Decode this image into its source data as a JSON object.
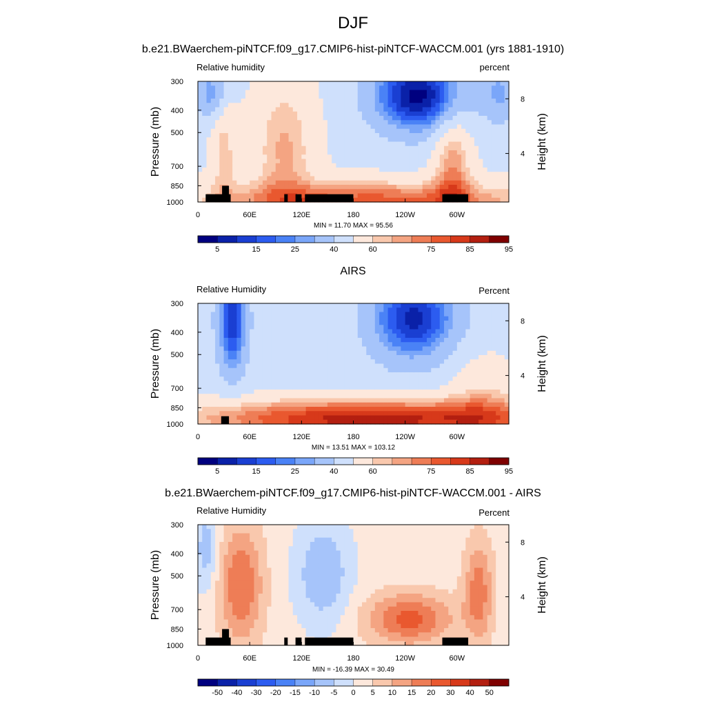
{
  "title": "DJF",
  "colors": {
    "abs_scale": [
      "#00007f",
      "#0a21a8",
      "#1a3fd2",
      "#2c5cf0",
      "#4a82f6",
      "#7aa6f9",
      "#a6c4fa",
      "#cfe0fc",
      "#fde8dc",
      "#f9c8ad",
      "#f4a482",
      "#ee7d56",
      "#e9582f",
      "#d7391a",
      "#b31f10",
      "#7f0000"
    ],
    "diff_scale": [
      "#00007f",
      "#0a21a8",
      "#1a3fd2",
      "#2c5cf0",
      "#4a82f6",
      "#7aa6f9",
      "#a6c4fa",
      "#cfe0fc",
      "#fde8dc",
      "#f9c8ad",
      "#f4a482",
      "#ee7d56",
      "#e9582f",
      "#d7391a",
      "#b31f10",
      "#7f0000"
    ],
    "terrain": "#000000"
  },
  "panels": [
    {
      "title": "b.e21.BWaerchem-piNTCF.f09_g17.CMIP6-hist-piNTCF-WACCM.001 (yrs 1881-1910)",
      "left_label": "Relative humidity",
      "right_label": "percent",
      "minmax": "MIN =  11.70  MAX =  95.56",
      "ylabel": "Pressure (mb)",
      "ylabel_right": "Height (km)",
      "y_ticks": [
        "300",
        "400",
        "500",
        "700",
        "850",
        "1000"
      ],
      "height_ticks": [
        "8",
        "4"
      ],
      "x_ticks": [
        "0",
        "60E",
        "120E",
        "180",
        "120W",
        "60W"
      ],
      "colorbar_labels": [
        "5",
        "15",
        "25",
        "40",
        "60",
        "75",
        "85",
        "95"
      ]
    },
    {
      "title": "AIRS",
      "left_label": "Relative Humidity",
      "right_label": "Percent",
      "minmax": "MIN =  13.51  MAX = 103.12",
      "ylabel": "Pressure (mb)",
      "ylabel_right": "Height (km)",
      "y_ticks": [
        "300",
        "400",
        "500",
        "700",
        "850",
        "1000"
      ],
      "height_ticks": [
        "8",
        "4"
      ],
      "x_ticks": [
        "0",
        "60E",
        "120E",
        "180",
        "120W",
        "60W"
      ],
      "colorbar_labels": [
        "5",
        "15",
        "25",
        "40",
        "60",
        "75",
        "85",
        "95"
      ]
    },
    {
      "title": "b.e21.BWaerchem-piNTCF.f09_g17.CMIP6-hist-piNTCF-WACCM.001 - AIRS",
      "left_label": "Relative Humidity",
      "right_label": "Percent",
      "minmax": "MIN = -16.39  MAX =  30.49",
      "ylabel": "Pressure (mb)",
      "ylabel_right": "Height (km)",
      "y_ticks": [
        "300",
        "400",
        "500",
        "700",
        "850",
        "1000"
      ],
      "height_ticks": [
        "8",
        "4"
      ],
      "x_ticks": [
        "0",
        "60E",
        "120E",
        "180",
        "120W",
        "60W"
      ],
      "colorbar_labels": [
        "-50",
        "-40",
        "-30",
        "-20",
        "-15",
        "-10",
        "-5",
        "0",
        "5",
        "10",
        "15",
        "20",
        "30",
        "40",
        "50"
      ]
    }
  ],
  "chart_data": [
    {
      "type": "heatmap",
      "title": "b.e21.BWaerchem-piNTCF.f09_g17.CMIP6-hist-piNTCF-WACCM.001 (yrs 1881-1910)",
      "ylabel": "Pressure (mb)",
      "ylabel_right": "Height (km)",
      "xlim": [
        0,
        360
      ],
      "ylim": [
        1000,
        300
      ],
      "x_ticks": [
        0,
        60,
        120,
        180,
        240,
        300
      ],
      "y_ticks": [
        300,
        400,
        500,
        700,
        850,
        1000
      ],
      "levels": [
        5,
        10,
        15,
        20,
        25,
        30,
        40,
        50,
        60,
        65,
        70,
        75,
        80,
        85,
        90,
        95
      ],
      "min": 11.7,
      "max": 95.56,
      "terrain": [
        [
          9,
          38,
          925
        ],
        [
          28,
          36,
          850
        ],
        [
          100,
          104,
          925
        ],
        [
          113,
          120,
          925
        ],
        [
          124,
          180,
          925
        ],
        [
          283,
          313,
          925
        ]
      ]
    },
    {
      "type": "heatmap",
      "title": "AIRS",
      "ylabel": "Pressure (mb)",
      "ylabel_right": "Height (km)",
      "xlim": [
        0,
        360
      ],
      "ylim": [
        1000,
        300
      ],
      "x_ticks": [
        0,
        60,
        120,
        180,
        240,
        300
      ],
      "y_ticks": [
        300,
        400,
        500,
        700,
        850,
        1000
      ],
      "levels": [
        5,
        10,
        15,
        20,
        25,
        30,
        40,
        50,
        60,
        65,
        70,
        75,
        80,
        85,
        90,
        95
      ],
      "min": 13.51,
      "max": 103.12,
      "terrain": [
        [
          27,
          36,
          925
        ]
      ]
    },
    {
      "type": "heatmap",
      "title": "b.e21.BWaerchem-piNTCF.f09_g17.CMIP6-hist-piNTCF-WACCM.001 - AIRS",
      "ylabel": "Pressure (mb)",
      "ylabel_right": "Height (km)",
      "xlim": [
        0,
        360
      ],
      "ylim": [
        1000,
        300
      ],
      "x_ticks": [
        0,
        60,
        120,
        180,
        240,
        300
      ],
      "y_ticks": [
        300,
        400,
        500,
        700,
        850,
        1000
      ],
      "levels": [
        -50,
        -40,
        -30,
        -20,
        -15,
        -10,
        -5,
        0,
        5,
        10,
        15,
        20,
        30,
        40,
        50
      ],
      "min": -16.39,
      "max": 30.49,
      "terrain": [
        [
          9,
          38,
          925
        ],
        [
          28,
          36,
          850
        ],
        [
          100,
          104,
          925
        ],
        [
          113,
          120,
          925
        ],
        [
          124,
          180,
          925
        ],
        [
          283,
          313,
          925
        ]
      ]
    }
  ]
}
